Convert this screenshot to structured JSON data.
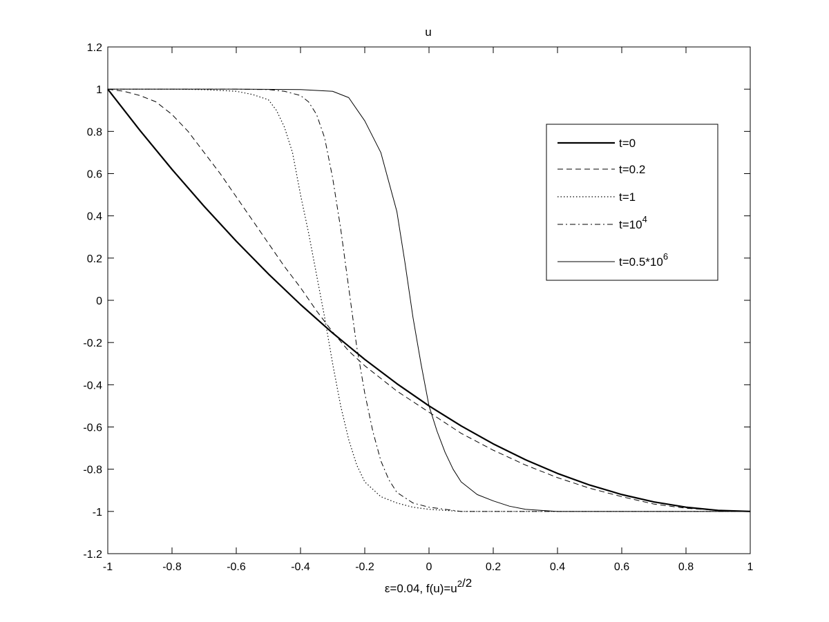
{
  "chart_data": {
    "type": "line",
    "title": "u",
    "xlabel_parts": [
      {
        "text": "ε=0.04, f(u)=u",
        "sup": false
      },
      {
        "text": "2",
        "sup": true
      },
      {
        "text": "/2",
        "sup": false
      }
    ],
    "xlim": [
      -1,
      1
    ],
    "ylim": [
      -1.2,
      1.2
    ],
    "xticks": [
      -1,
      -0.8,
      -0.6,
      -0.4,
      -0.2,
      0,
      0.2,
      0.4,
      0.6,
      0.8,
      1
    ],
    "xtick_labels": [
      "-1",
      "-0.8",
      "-0.6",
      "-0.4",
      "-0.2",
      "0",
      "0.2",
      "0.4",
      "0.6",
      "0.8",
      "1"
    ],
    "yticks": [
      -1.2,
      -1,
      -0.8,
      -0.6,
      -0.4,
      -0.2,
      0,
      0.2,
      0.4,
      0.6,
      0.8,
      1,
      1.2
    ],
    "ytick_labels": [
      "-1.2",
      "-1",
      "-0.8",
      "-0.6",
      "-0.4",
      "-0.2",
      "0",
      "0.2",
      "0.4",
      "0.6",
      "0.8",
      "1",
      "1.2"
    ],
    "grid": false,
    "legend_position": "top-right",
    "series": [
      {
        "legend": [
          {
            "text": "t=0",
            "sup": false
          }
        ],
        "style": "solid-thick",
        "x": [
          -1,
          -0.9,
          -0.8,
          -0.7,
          -0.6,
          -0.5,
          -0.4,
          -0.3,
          -0.2,
          -0.1,
          0,
          0.1,
          0.2,
          0.3,
          0.4,
          0.5,
          0.6,
          0.7,
          0.8,
          0.9,
          1
        ],
        "y": [
          1,
          0.805,
          0.62,
          0.445,
          0.28,
          0.125,
          -0.02,
          -0.155,
          -0.28,
          -0.395,
          -0.5,
          -0.595,
          -0.68,
          -0.755,
          -0.82,
          -0.875,
          -0.92,
          -0.955,
          -0.98,
          -0.995,
          -1
        ]
      },
      {
        "legend": [
          {
            "text": "t=0.2",
            "sup": false
          }
        ],
        "style": "dashed",
        "x": [
          -1,
          -0.95,
          -0.9,
          -0.85,
          -0.8,
          -0.75,
          -0.7,
          -0.65,
          -0.6,
          -0.55,
          -0.5,
          -0.45,
          -0.4,
          -0.35,
          -0.3,
          -0.25,
          -0.2,
          -0.15,
          -0.1,
          -0.05,
          0,
          0.1,
          0.2,
          0.3,
          0.4,
          0.5,
          0.6,
          0.7,
          0.8,
          0.9,
          1
        ],
        "y": [
          1,
          0.99,
          0.97,
          0.94,
          0.88,
          0.8,
          0.7,
          0.6,
          0.49,
          0.38,
          0.27,
          0.16,
          0.06,
          -0.05,
          -0.15,
          -0.24,
          -0.31,
          -0.37,
          -0.43,
          -0.48,
          -0.53,
          -0.63,
          -0.71,
          -0.78,
          -0.84,
          -0.89,
          -0.93,
          -0.965,
          -0.985,
          -0.995,
          -1
        ]
      },
      {
        "legend": [
          {
            "text": "t=1",
            "sup": false
          }
        ],
        "style": "dotted",
        "x": [
          -1,
          -0.9,
          -0.8,
          -0.7,
          -0.6,
          -0.55,
          -0.5,
          -0.475,
          -0.45,
          -0.425,
          -0.4,
          -0.375,
          -0.35,
          -0.325,
          -0.3,
          -0.275,
          -0.25,
          -0.225,
          -0.2,
          -0.15,
          -0.1,
          -0.05,
          0,
          0.1,
          0.2,
          0.4,
          0.6,
          0.8,
          1
        ],
        "y": [
          1,
          1,
          1,
          0.998,
          0.99,
          0.975,
          0.95,
          0.9,
          0.82,
          0.7,
          0.5,
          0.32,
          0.12,
          -0.08,
          -0.3,
          -0.5,
          -0.66,
          -0.78,
          -0.86,
          -0.93,
          -0.96,
          -0.98,
          -0.99,
          -1,
          -1,
          -1,
          -1,
          -1,
          -1
        ]
      },
      {
        "legend": [
          {
            "text": "t=10",
            "sup": false
          },
          {
            "text": "4",
            "sup": true
          }
        ],
        "style": "dashdot",
        "x": [
          -1,
          -0.9,
          -0.8,
          -0.7,
          -0.6,
          -0.5,
          -0.45,
          -0.4,
          -0.375,
          -0.35,
          -0.325,
          -0.3,
          -0.275,
          -0.25,
          -0.225,
          -0.2,
          -0.175,
          -0.15,
          -0.125,
          -0.1,
          -0.05,
          0,
          0.05,
          0.1,
          0.2,
          0.4,
          0.6,
          0.8,
          1
        ],
        "y": [
          1,
          1,
          1,
          1,
          1,
          0.998,
          0.99,
          0.97,
          0.94,
          0.88,
          0.77,
          0.58,
          0.34,
          0.06,
          -0.22,
          -0.44,
          -0.62,
          -0.76,
          -0.85,
          -0.91,
          -0.96,
          -0.98,
          -0.99,
          -1,
          -1,
          -1,
          -1,
          -1,
          -1
        ]
      },
      {
        "legend": [
          {
            "text": "t=0.5*10",
            "sup": false
          },
          {
            "text": "6",
            "sup": true
          }
        ],
        "style": "solid-thin",
        "x": [
          -1,
          -0.8,
          -0.6,
          -0.4,
          -0.3,
          -0.25,
          -0.2,
          -0.15,
          -0.1,
          -0.075,
          -0.05,
          -0.025,
          0,
          0.025,
          0.05,
          0.075,
          0.1,
          0.15,
          0.2,
          0.25,
          0.3,
          0.4,
          0.6,
          0.8,
          1
        ],
        "y": [
          1,
          1,
          1,
          0.998,
          0.99,
          0.96,
          0.85,
          0.7,
          0.42,
          0.18,
          -0.08,
          -0.3,
          -0.5,
          -0.62,
          -0.72,
          -0.8,
          -0.86,
          -0.92,
          -0.95,
          -0.975,
          -0.99,
          -1,
          -1,
          -1,
          -1
        ]
      }
    ]
  }
}
